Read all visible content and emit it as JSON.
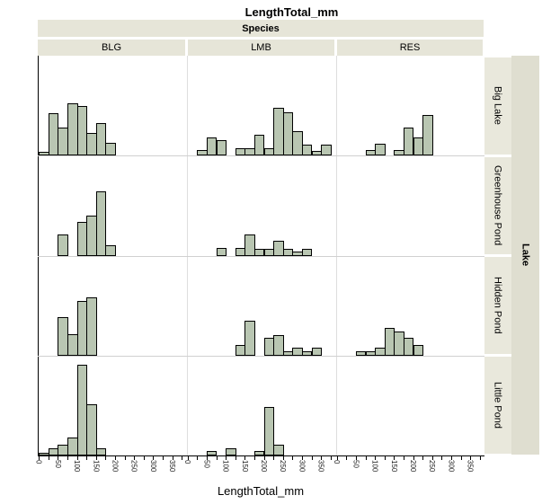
{
  "title": {
    "text": "LengthTotal_mm"
  },
  "column_header": {
    "title": "Species",
    "columns": [
      "BLG",
      "LMB",
      "RES"
    ]
  },
  "row_header": {
    "title": "Lake",
    "rows": [
      "Big Lake",
      "Greenhouse Pond",
      "Hidden Pond",
      "Little Pond"
    ]
  },
  "x_axis": {
    "label": "LengthTotal_mm",
    "tick_labels": [
      "0",
      "50",
      "100",
      "150",
      "200",
      "250",
      "300",
      "350"
    ],
    "minor_tick_step_mm": 25,
    "major_tick_step_mm": 50,
    "range_mm": [
      0,
      375
    ]
  },
  "y_axis": {
    "label": "",
    "note": "frequency axis, no tick labels shown"
  },
  "colors": {
    "bar_fill": "#b9c6b2",
    "bar_border": "#000000",
    "strip_bg": "#e6e5d8",
    "row_strip_bg": "#e9e8dc",
    "outer_strip_bg": "#dfded0",
    "grid_horizontal": "#d0d0d0",
    "grid_vertical": "#dedede",
    "axis_color": "#000000"
  },
  "chart_data": {
    "type": "bar",
    "subtype": "trellis-histogram",
    "title": "LengthTotal_mm",
    "xlabel": "LengthTotal_mm",
    "ylabel": "frequency (unlabeled)",
    "facet_columns_label": "Species",
    "facet_rows_label": "Lake",
    "bin_width_mm": 25,
    "x_ticks_mm": [
      0,
      50,
      100,
      150,
      200,
      250,
      300,
      350
    ],
    "bars_format": [
      "bin_start_mm",
      "height_px_relative"
    ],
    "panels": [
      {
        "lake": "Big Lake",
        "species": "BLG",
        "bars": [
          [
            0,
            4
          ],
          [
            25,
            47
          ],
          [
            50,
            31
          ],
          [
            75,
            58
          ],
          [
            100,
            55
          ],
          [
            125,
            25
          ],
          [
            150,
            36
          ],
          [
            175,
            14
          ]
        ]
      },
      {
        "lake": "Big Lake",
        "species": "LMB",
        "bars": [
          [
            25,
            6
          ],
          [
            50,
            20
          ],
          [
            75,
            17
          ],
          [
            125,
            8
          ],
          [
            150,
            8
          ],
          [
            175,
            23
          ],
          [
            200,
            8
          ],
          [
            225,
            53
          ],
          [
            250,
            48
          ],
          [
            275,
            27
          ],
          [
            300,
            12
          ],
          [
            325,
            5
          ],
          [
            350,
            12
          ]
        ]
      },
      {
        "lake": "Big Lake",
        "species": "RES",
        "bars": [
          [
            75,
            6
          ],
          [
            100,
            13
          ],
          [
            150,
            6
          ],
          [
            175,
            31
          ],
          [
            200,
            20
          ],
          [
            225,
            45
          ]
        ]
      },
      {
        "lake": "Greenhouse Pond",
        "species": "BLG",
        "bars": [
          [
            50,
            24
          ],
          [
            100,
            38
          ],
          [
            125,
            45
          ],
          [
            150,
            72
          ],
          [
            175,
            12
          ]
        ]
      },
      {
        "lake": "Greenhouse Pond",
        "species": "LMB",
        "bars": [
          [
            75,
            9
          ],
          [
            125,
            9
          ],
          [
            150,
            24
          ],
          [
            175,
            8
          ],
          [
            200,
            8
          ],
          [
            225,
            17
          ],
          [
            250,
            8
          ],
          [
            275,
            5
          ],
          [
            300,
            8
          ]
        ]
      },
      {
        "lake": "Greenhouse Pond",
        "species": "RES",
        "bars": []
      },
      {
        "lake": "Hidden Pond",
        "species": "BLG",
        "bars": [
          [
            50,
            43
          ],
          [
            75,
            24
          ],
          [
            100,
            61
          ],
          [
            125,
            65
          ]
        ]
      },
      {
        "lake": "Hidden Pond",
        "species": "LMB",
        "bars": [
          [
            125,
            12
          ],
          [
            150,
            39
          ],
          [
            200,
            20
          ],
          [
            225,
            23
          ],
          [
            250,
            5
          ],
          [
            275,
            9
          ],
          [
            300,
            5
          ],
          [
            325,
            9
          ]
        ]
      },
      {
        "lake": "Hidden Pond",
        "species": "RES",
        "bars": [
          [
            50,
            5
          ],
          [
            75,
            5
          ],
          [
            100,
            9
          ],
          [
            125,
            31
          ],
          [
            150,
            27
          ],
          [
            175,
            20
          ],
          [
            200,
            12
          ]
        ]
      },
      {
        "lake": "Little Pond",
        "species": "BLG",
        "bars": [
          [
            0,
            3
          ],
          [
            25,
            8
          ],
          [
            50,
            12
          ],
          [
            75,
            20
          ],
          [
            100,
            101
          ],
          [
            125,
            57
          ],
          [
            150,
            8
          ]
        ]
      },
      {
        "lake": "Little Pond",
        "species": "LMB",
        "bars": [
          [
            50,
            5
          ],
          [
            100,
            8
          ],
          [
            175,
            5
          ],
          [
            200,
            54
          ],
          [
            225,
            12
          ]
        ]
      },
      {
        "lake": "Little Pond",
        "species": "RES",
        "bars": []
      }
    ]
  }
}
